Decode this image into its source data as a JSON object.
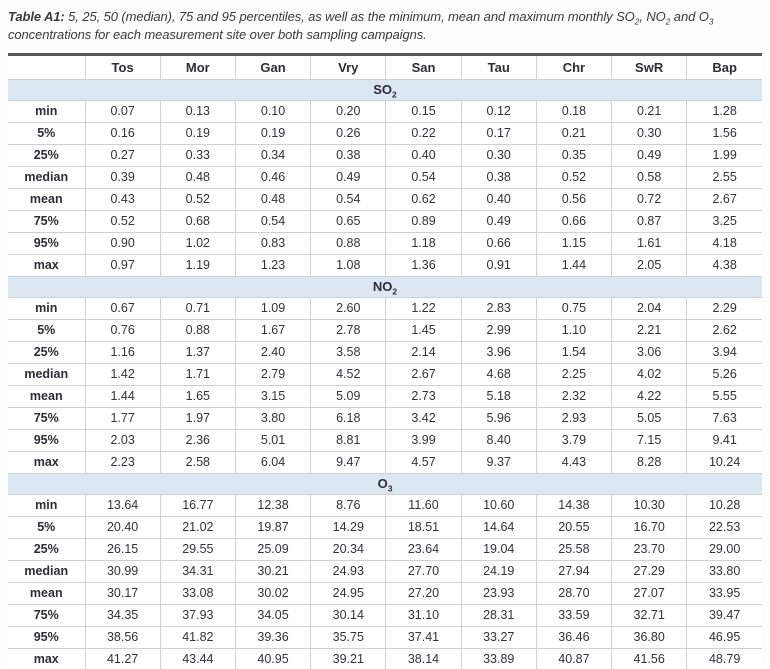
{
  "caption": {
    "label": "Table A1:",
    "before": "5, 25, 50 (median), 75 and 95 percentiles, as well as the minimum, mean and maximum monthly",
    "gases": [
      {
        "text": "SO",
        "sub": "2",
        "after": ", "
      },
      {
        "text": "NO",
        "sub": "2",
        "after": " and "
      },
      {
        "text": "O",
        "sub": "3",
        "after": " "
      }
    ],
    "after": "concentrations for each measurement site over both sampling campaigns."
  },
  "table": {
    "columns": [
      "Tos",
      "Mor",
      "Gan",
      "Vry",
      "San",
      "Tau",
      "Chr",
      "SwR",
      "Bap"
    ],
    "row_labels": [
      "min",
      "5%",
      "25%",
      "median",
      "mean",
      "75%",
      "95%",
      "max"
    ],
    "sections": [
      {
        "gas": "SO",
        "sub": "2",
        "rows": [
          [
            "0.07",
            "0.13",
            "0.10",
            "0.20",
            "0.15",
            "0.12",
            "0.18",
            "0.21",
            "1.28"
          ],
          [
            "0.16",
            "0.19",
            "0.19",
            "0.26",
            "0.22",
            "0.17",
            "0.21",
            "0.30",
            "1.56"
          ],
          [
            "0.27",
            "0.33",
            "0.34",
            "0.38",
            "0.40",
            "0.30",
            "0.35",
            "0.49",
            "1.99"
          ],
          [
            "0.39",
            "0.48",
            "0.46",
            "0.49",
            "0.54",
            "0.38",
            "0.52",
            "0.58",
            "2.55"
          ],
          [
            "0.43",
            "0.52",
            "0.48",
            "0.54",
            "0.62",
            "0.40",
            "0.56",
            "0.72",
            "2.67"
          ],
          [
            "0.52",
            "0.68",
            "0.54",
            "0.65",
            "0.89",
            "0.49",
            "0.66",
            "0.87",
            "3.25"
          ],
          [
            "0.90",
            "1.02",
            "0.83",
            "0.88",
            "1.18",
            "0.66",
            "1.15",
            "1.61",
            "4.18"
          ],
          [
            "0.97",
            "1.19",
            "1.23",
            "1.08",
            "1.36",
            "0.91",
            "1.44",
            "2.05",
            "4.38"
          ]
        ]
      },
      {
        "gas": "NO",
        "sub": "2",
        "rows": [
          [
            "0.67",
            "0.71",
            "1.09",
            "2.60",
            "1.22",
            "2.83",
            "0.75",
            "2.04",
            "2.29"
          ],
          [
            "0.76",
            "0.88",
            "1.67",
            "2.78",
            "1.45",
            "2.99",
            "1.10",
            "2.21",
            "2.62"
          ],
          [
            "1.16",
            "1.37",
            "2.40",
            "3.58",
            "2.14",
            "3.96",
            "1.54",
            "3.06",
            "3.94"
          ],
          [
            "1.42",
            "1.71",
            "2.79",
            "4.52",
            "2.67",
            "4.68",
            "2.25",
            "4.02",
            "5.26"
          ],
          [
            "1.44",
            "1.65",
            "3.15",
            "5.09",
            "2.73",
            "5.18",
            "2.32",
            "4.22",
            "5.55"
          ],
          [
            "1.77",
            "1.97",
            "3.80",
            "6.18",
            "3.42",
            "5.96",
            "2.93",
            "5.05",
            "7.63"
          ],
          [
            "2.03",
            "2.36",
            "5.01",
            "8.81",
            "3.99",
            "8.40",
            "3.79",
            "7.15",
            "9.41"
          ],
          [
            "2.23",
            "2.58",
            "6.04",
            "9.47",
            "4.57",
            "9.37",
            "4.43",
            "8.28",
            "10.24"
          ]
        ]
      },
      {
        "gas": "O",
        "sub": "3",
        "rows": [
          [
            "13.64",
            "16.77",
            "12.38",
            "8.76",
            "11.60",
            "10.60",
            "14.38",
            "10.30",
            "10.28"
          ],
          [
            "20.40",
            "21.02",
            "19.87",
            "14.29",
            "18.51",
            "14.64",
            "20.55",
            "16.70",
            "22.53"
          ],
          [
            "26.15",
            "29.55",
            "25.09",
            "20.34",
            "23.64",
            "19.04",
            "25.58",
            "23.70",
            "29.00"
          ],
          [
            "30.99",
            "34.31",
            "30.21",
            "24.93",
            "27.70",
            "24.19",
            "27.94",
            "27.29",
            "33.80"
          ],
          [
            "30.17",
            "33.08",
            "30.02",
            "24.95",
            "27.20",
            "23.93",
            "28.70",
            "27.07",
            "33.95"
          ],
          [
            "34.35",
            "37.93",
            "34.05",
            "30.14",
            "31.10",
            "28.31",
            "33.59",
            "32.71",
            "39.47"
          ],
          [
            "38.56",
            "41.82",
            "39.36",
            "35.75",
            "37.41",
            "33.27",
            "36.46",
            "36.80",
            "46.95"
          ],
          [
            "41.27",
            "43.44",
            "40.95",
            "39.21",
            "38.14",
            "33.89",
            "40.87",
            "41.56",
            "48.79"
          ]
        ]
      }
    ]
  },
  "colors": {
    "section_band_bg": "#dbe8f4",
    "grid_border": "#cdd1d5",
    "table_top_border": "#57585a",
    "table_bottom_border": "#b2b4b6",
    "text": "#32323c"
  }
}
